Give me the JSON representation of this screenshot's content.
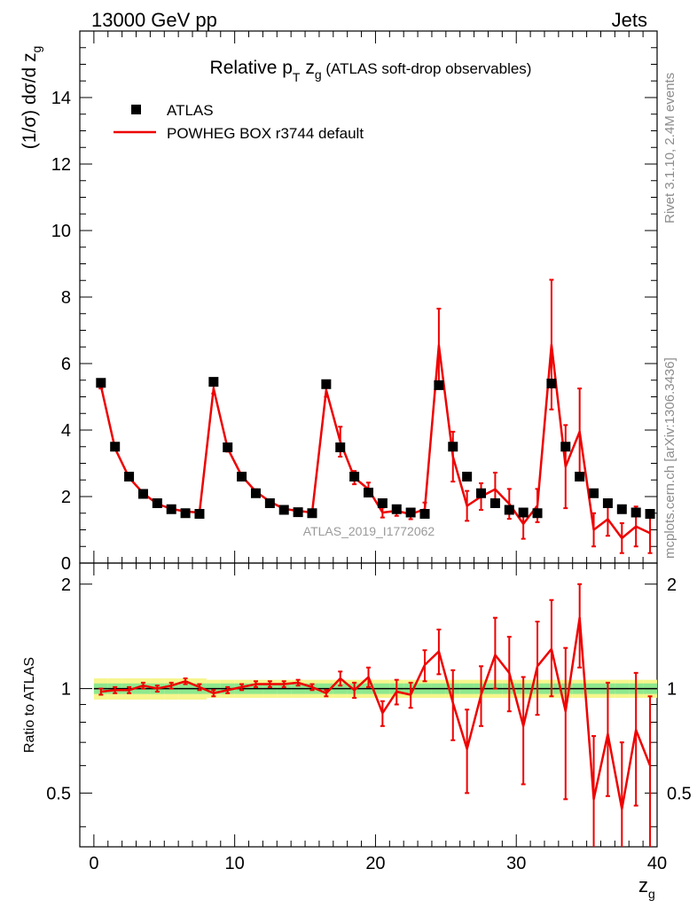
{
  "header": {
    "left": "13000 GeV pp",
    "right": "Jets"
  },
  "top_panel": {
    "title_main": "Relative p",
    "title_sub_t": "T",
    "title_z": " z",
    "title_sub_g": "g",
    "title_paren": " (ATLAS soft-drop observables)",
    "ylabel": "(1/σ) dσ/d z",
    "ylabel_sub": "g",
    "watermark": "ATLAS_2019_I1772062",
    "yticks": [
      "0",
      "2",
      "4",
      "6",
      "8",
      "10",
      "12",
      "14"
    ]
  },
  "legend": {
    "data_label": "ATLAS",
    "mc_label": "POWHEG BOX r3744 default"
  },
  "side_text": {
    "rivet": "Rivet 3.1.10,  2.4M events",
    "mcplots": "mcplots.cern.ch [arXiv:1306.3436]"
  },
  "bottom_panel": {
    "ylabel": "Ratio to ATLAS",
    "yticks": [
      "0.5",
      "1",
      "2"
    ],
    "xlabel": "z",
    "xlabel_sub": "g",
    "xticks": [
      "0",
      "10",
      "20",
      "30",
      "40"
    ]
  },
  "colors": {
    "mc": "#ee0000",
    "data": "#000000",
    "band_inner": "#8ee88e",
    "band_outer": "#f6f68c",
    "side_text": "#8c8c8c"
  },
  "chart_data": [
    {
      "type": "line",
      "panel": "main",
      "title": "Relative pT zg (ATLAS soft-drop observables)",
      "xlabel": "zg",
      "ylabel": "(1/σ) dσ/d zg",
      "xlim": [
        -1,
        40
      ],
      "ylim": [
        0,
        16
      ],
      "x": [
        0.5,
        1.5,
        2.5,
        3.5,
        4.5,
        5.5,
        6.5,
        7.5,
        8.5,
        9.5,
        10.5,
        11.5,
        12.5,
        13.5,
        14.5,
        15.5,
        16.5,
        17.5,
        18.5,
        19.5,
        20.5,
        21.5,
        22.5,
        23.5,
        24.5,
        25.5,
        26.5,
        27.5,
        28.5,
        29.5,
        30.5,
        31.5,
        32.5,
        33.5,
        34.5,
        35.5,
        36.5,
        37.5,
        38.5,
        39.5
      ],
      "series": [
        {
          "name": "ATLAS",
          "style": "markers",
          "values": [
            5.42,
            3.5,
            2.6,
            2.08,
            1.8,
            1.62,
            1.5,
            1.48,
            5.45,
            3.48,
            2.6,
            2.1,
            1.8,
            1.6,
            1.53,
            1.5,
            5.38,
            3.48,
            2.6,
            2.12,
            1.8,
            1.62,
            1.52,
            1.48,
            5.35,
            3.5,
            2.6,
            2.1,
            1.8,
            1.6,
            1.52,
            1.5,
            5.4,
            3.5,
            2.6,
            2.1,
            1.8,
            1.62,
            1.52,
            1.48
          ]
        },
        {
          "name": "POWHEG BOX r3744 default",
          "style": "line",
          "values": [
            5.33,
            3.45,
            2.57,
            2.1,
            1.78,
            1.63,
            1.55,
            1.52,
            5.25,
            3.45,
            2.62,
            2.15,
            1.85,
            1.63,
            1.57,
            1.52,
            5.2,
            3.65,
            2.57,
            2.22,
            1.52,
            1.57,
            1.47,
            1.62,
            6.55,
            3.2,
            1.72,
            2.0,
            2.22,
            1.78,
            1.18,
            1.73,
            6.57,
            2.9,
            3.95,
            1.0,
            1.32,
            0.75,
            1.1,
            0.9
          ],
          "errors": [
            0.08,
            0.06,
            0.05,
            0.05,
            0.05,
            0.05,
            0.05,
            0.05,
            0.15,
            0.1,
            0.08,
            0.07,
            0.07,
            0.07,
            0.07,
            0.07,
            0.2,
            0.45,
            0.2,
            0.2,
            0.15,
            0.15,
            0.15,
            0.2,
            1.1,
            0.75,
            0.45,
            0.4,
            0.5,
            0.45,
            0.45,
            0.5,
            1.95,
            1.25,
            1.3,
            0.5,
            0.5,
            0.45,
            0.6,
            0.6
          ]
        }
      ]
    },
    {
      "type": "line",
      "panel": "ratio",
      "ylabel": "Ratio to ATLAS",
      "xlabel": "zg",
      "ylim": [
        0.35,
        2.3
      ],
      "yscale": "log",
      "x": [
        0.5,
        1.5,
        2.5,
        3.5,
        4.5,
        5.5,
        6.5,
        7.5,
        8.5,
        9.5,
        10.5,
        11.5,
        12.5,
        13.5,
        14.5,
        15.5,
        16.5,
        17.5,
        18.5,
        19.5,
        20.5,
        21.5,
        22.5,
        23.5,
        24.5,
        25.5,
        26.5,
        27.5,
        28.5,
        29.5,
        30.5,
        31.5,
        32.5,
        33.5,
        34.5,
        35.5,
        36.5,
        37.5,
        38.5,
        39.5
      ],
      "series": [
        {
          "name": "POWHEG BOX r3744 default / ATLAS",
          "values": [
            0.98,
            0.99,
            0.99,
            1.02,
            1.0,
            1.02,
            1.05,
            1.01,
            0.97,
            0.99,
            1.01,
            1.03,
            1.03,
            1.03,
            1.04,
            1.01,
            0.97,
            1.07,
            0.99,
            1.08,
            0.85,
            0.98,
            0.96,
            1.17,
            1.28,
            0.91,
            0.67,
            0.96,
            1.25,
            1.11,
            0.78,
            1.16,
            1.3,
            0.86,
            1.6,
            0.48,
            0.74,
            0.45,
            0.76,
            0.6
          ],
          "err_low": [
            0.02,
            0.02,
            0.02,
            0.02,
            0.02,
            0.02,
            0.02,
            0.02,
            0.02,
            0.02,
            0.02,
            0.02,
            0.02,
            0.02,
            0.02,
            0.02,
            0.02,
            0.05,
            0.05,
            0.07,
            0.07,
            0.08,
            0.08,
            0.12,
            0.18,
            0.2,
            0.17,
            0.18,
            0.25,
            0.25,
            0.25,
            0.32,
            0.35,
            0.38,
            0.45,
            0.2,
            0.25,
            0.2,
            0.3,
            0.3
          ],
          "err_high": [
            0.02,
            0.02,
            0.02,
            0.02,
            0.02,
            0.02,
            0.02,
            0.02,
            0.02,
            0.02,
            0.02,
            0.02,
            0.02,
            0.02,
            0.02,
            0.02,
            0.02,
            0.05,
            0.05,
            0.07,
            0.07,
            0.08,
            0.08,
            0.12,
            0.2,
            0.22,
            0.2,
            0.2,
            0.35,
            0.3,
            0.3,
            0.4,
            0.5,
            0.45,
            0.4,
            0.25,
            0.3,
            0.25,
            0.35,
            0.35
          ],
          "band_inner": [
            0.035,
            0.035,
            0.035,
            0.035,
            0.035,
            0.035,
            0.035,
            0.035,
            0.035,
            0.035,
            0.035,
            0.035,
            0.035,
            0.035,
            0.035,
            0.035,
            0.035,
            0.035,
            0.035,
            0.035,
            0.035,
            0.035,
            0.035,
            0.035,
            0.035,
            0.035,
            0.035,
            0.035,
            0.035,
            0.035,
            0.035,
            0.035,
            0.035,
            0.035,
            0.035,
            0.035,
            0.035,
            0.035,
            0.035,
            0.035
          ],
          "band_outer": [
            0.07,
            0.07,
            0.07,
            0.07,
            0.07,
            0.07,
            0.07,
            0.07,
            0.06,
            0.06,
            0.06,
            0.06,
            0.06,
            0.06,
            0.06,
            0.06,
            0.06,
            0.06,
            0.06,
            0.06,
            0.06,
            0.06,
            0.06,
            0.06,
            0.06,
            0.06,
            0.06,
            0.06,
            0.06,
            0.06,
            0.06,
            0.06,
            0.06,
            0.06,
            0.06,
            0.06,
            0.06,
            0.06,
            0.06,
            0.06
          ]
        }
      ]
    }
  ]
}
